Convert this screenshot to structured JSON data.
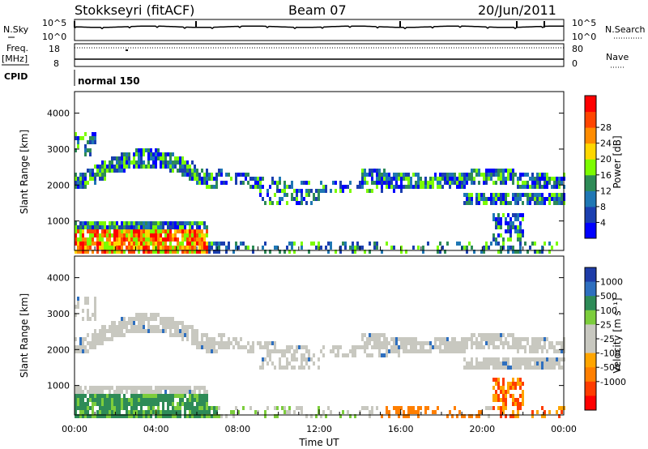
{
  "header": {
    "station": "Stokkseyri (fitACF)",
    "beam": "Beam 07",
    "date": "20/Jun/2011"
  },
  "strip": {
    "nsky_label": "N.Sky",
    "nsky_top": "10^5",
    "nsky_bottom": "10^0",
    "nsearch_label": "N.Search",
    "nsearch_top": "10^5",
    "nsearch_bottom": "10^0",
    "freq_label_1": "Freq.",
    "freq_label_2": "[MHz]",
    "freq_top": "18",
    "freq_bottom": "8",
    "nave_label": "Nave",
    "nave_top": "80",
    "nave_bottom": "0",
    "cpid_label": "CPID",
    "cpid_value": "normal 150"
  },
  "chart_data": [
    {
      "type": "heatmap",
      "title": "",
      "ylabel": "Slant Range [km]",
      "xlabel": "",
      "ylim": [
        180,
        4600
      ],
      "yticks": [
        "1000",
        "2000",
        "3000",
        "4000"
      ],
      "yticks_values": [
        1000,
        2000,
        3000,
        4000
      ],
      "xlim": [
        0,
        24
      ],
      "colorbar": {
        "label": "Power [dB]",
        "ticks": [
          "4",
          "8",
          "12",
          "16",
          "20",
          "24",
          "28"
        ],
        "colors": [
          "#0000ff",
          "#1b3fb0",
          "#1f77b4",
          "#2e8b57",
          "#7cfc00",
          "#ffd700",
          "#ff8c00",
          "#ff4500",
          "#ff0000"
        ]
      }
    },
    {
      "type": "heatmap",
      "title": "",
      "ylabel": "Slant Range [km]",
      "xlabel": "Time UT",
      "ylim": [
        180,
        4600
      ],
      "yticks": [
        "1000",
        "2000",
        "3000",
        "4000"
      ],
      "yticks_values": [
        1000,
        2000,
        3000,
        4000
      ],
      "xlim": [
        0,
        24
      ],
      "xticks": [
        "00:00",
        "04:00",
        "08:00",
        "12:00",
        "16:00",
        "20:00",
        "00:00"
      ],
      "xticks_values": [
        0,
        4,
        8,
        12,
        16,
        20,
        24
      ],
      "colorbar": {
        "label": "Velocity [m s⁻¹]",
        "ticks": [
          "1000",
          "500",
          "100",
          "25",
          "-25",
          "-100",
          "-500",
          "-1000"
        ],
        "colors": [
          "#1e3ca8",
          "#2e6fbf",
          "#2e8b57",
          "#7ccd3c",
          "#c8c8c0",
          "#c8c8c0",
          "#ffa500",
          "#ff7f00",
          "#ff3c00",
          "#ff0000"
        ]
      }
    }
  ]
}
